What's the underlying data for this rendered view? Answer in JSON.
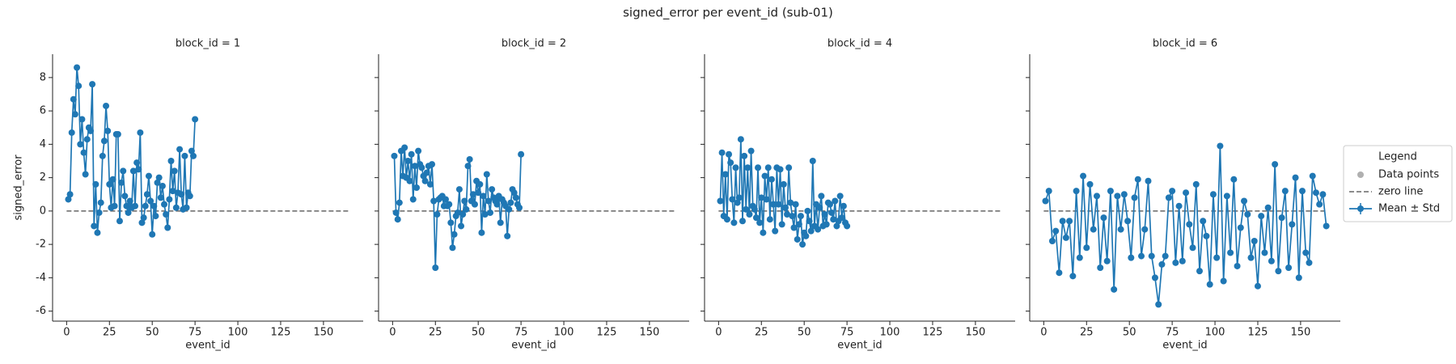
{
  "title": "signed_error per event_id (sub-01)",
  "legend": {
    "title": "Legend",
    "entries": [
      {
        "name": "Data points",
        "color": "#b0b0b0",
        "style": "marker"
      },
      {
        "name": "zero line",
        "color": "#666666",
        "style": "dashed"
      },
      {
        "name": "Mean ± Std",
        "color": "#1f77b4",
        "style": "line-marker"
      }
    ]
  },
  "chart_data": [
    {
      "type": "line",
      "title": "block_id = 1",
      "xlabel": "event_id",
      "ylabel": "signed_error",
      "xlim": [
        -8.2,
        173.2
      ],
      "xticks": [
        0,
        25,
        50,
        75,
        100,
        125,
        150
      ],
      "ylim": [
        -6.6,
        9.4
      ],
      "yticks": [
        -6,
        -4,
        -2,
        0,
        2,
        4,
        6,
        8
      ],
      "zero_line": {
        "y": 0,
        "x": [
          0,
          165
        ]
      },
      "x": [
        1,
        2,
        3,
        4,
        5,
        6,
        7,
        8,
        9,
        10,
        11,
        12,
        13,
        14,
        15,
        16,
        17,
        18,
        19,
        20,
        21,
        22,
        23,
        24,
        25,
        26,
        27,
        28,
        29,
        30,
        31,
        32,
        33,
        34,
        35,
        36,
        37,
        38,
        39,
        40,
        41,
        42,
        43,
        44,
        45,
        46,
        47,
        48,
        49,
        50,
        51,
        52,
        53,
        54,
        55,
        56,
        57,
        58,
        59,
        60,
        61,
        62,
        63,
        64,
        65,
        66,
        67,
        68,
        69,
        70,
        71,
        72,
        73,
        74,
        75
      ],
      "series": [
        {
          "color": "#1f77b4",
          "values": [
            0.7,
            1.0,
            4.7,
            6.7,
            5.8,
            8.6,
            7.5,
            4.0,
            5.5,
            3.5,
            2.2,
            4.3,
            5.0,
            4.8,
            7.6,
            -0.9,
            1.6,
            -1.3,
            -0.1,
            0.5,
            3.3,
            4.2,
            6.3,
            4.8,
            1.6,
            0.2,
            1.9,
            0.3,
            4.6,
            4.6,
            -0.6,
            1.7,
            2.4,
            0.9,
            0.3,
            -0.1,
            0.6,
            0.2,
            2.4,
            0.3,
            2.9,
            2.5,
            4.7,
            -0.7,
            -0.4,
            0.3,
            1.0,
            2.1,
            0.6,
            -1.4,
            0.3,
            -0.3,
            1.7,
            2.0,
            0.8,
            1.5,
            0.4,
            -0.2,
            -1.0,
            0.7,
            3.0,
            1.2,
            2.4,
            0.2,
            1.1,
            3.7,
            1.0,
            0.1,
            3.3,
            0.2,
            1.1,
            0.9,
            3.6,
            3.3,
            5.5
          ]
        }
      ]
    },
    {
      "type": "line",
      "title": "block_id = 2",
      "xlabel": "event_id",
      "xlim": [
        -8.2,
        173.2
      ],
      "xticks": [
        0,
        25,
        50,
        75,
        100,
        125,
        150
      ],
      "zero_line": {
        "y": 0,
        "x": [
          0,
          165
        ]
      },
      "x": [
        1,
        2,
        3,
        4,
        5,
        6,
        7,
        8,
        9,
        10,
        11,
        12,
        13,
        14,
        15,
        16,
        17,
        18,
        19,
        20,
        21,
        22,
        23,
        24,
        25,
        26,
        27,
        28,
        29,
        30,
        31,
        32,
        33,
        34,
        35,
        36,
        37,
        38,
        39,
        40,
        41,
        42,
        43,
        44,
        45,
        46,
        47,
        48,
        49,
        50,
        51,
        52,
        53,
        54,
        55,
        56,
        57,
        58,
        59,
        60,
        61,
        62,
        63,
        64,
        65,
        66,
        67,
        68,
        69,
        70,
        71,
        72,
        73,
        74,
        75
      ],
      "series": [
        {
          "color": "#1f77b4",
          "values": [
            3.3,
            -0.1,
            -0.5,
            0.5,
            3.6,
            2.1,
            3.8,
            2.0,
            3.0,
            1.8,
            3.4,
            0.7,
            2.7,
            1.4,
            3.6,
            2.8,
            2.6,
            2.1,
            1.8,
            2.3,
            2.7,
            1.6,
            2.8,
            0.6,
            -3.4,
            -0.2,
            0.7,
            0.8,
            0.9,
            0.3,
            0.7,
            0.3,
            0.4,
            -0.7,
            -2.2,
            -1.4,
            -0.3,
            -0.1,
            1.3,
            -0.9,
            -0.2,
            0.6,
            0.1,
            2.7,
            3.1,
            0.6,
            1.0,
            0.4,
            1.8,
            1.1,
            1.6,
            -1.3,
            0.9,
            -0.2,
            2.2,
            0.6,
            -0.1,
            1.3,
            0.8,
            0.6,
            0.4,
            0.9,
            -0.7,
            0.7,
            0.5,
            0.3,
            -1.5,
            0.1,
            0.5,
            1.3,
            1.1,
            0.8,
            0.4,
            0.2,
            3.4
          ]
        }
      ]
    },
    {
      "type": "line",
      "title": "block_id = 4",
      "xlabel": "event_id",
      "xlim": [
        -8.2,
        173.2
      ],
      "xticks": [
        0,
        25,
        50,
        75,
        100,
        125,
        150
      ],
      "zero_line": {
        "y": 0,
        "x": [
          0,
          165
        ]
      },
      "x": [
        1,
        2,
        3,
        4,
        5,
        6,
        7,
        8,
        9,
        10,
        11,
        12,
        13,
        14,
        15,
        16,
        17,
        18,
        19,
        20,
        21,
        22,
        23,
        24,
        25,
        26,
        27,
        28,
        29,
        30,
        31,
        32,
        33,
        34,
        35,
        36,
        37,
        38,
        39,
        40,
        41,
        42,
        43,
        44,
        45,
        46,
        47,
        48,
        49,
        50,
        51,
        52,
        53,
        54,
        55,
        56,
        57,
        58,
        59,
        60,
        61,
        62,
        63,
        64,
        65,
        66,
        67,
        68,
        69,
        70,
        71,
        72,
        73,
        74,
        75
      ],
      "series": [
        {
          "color": "#1f77b4",
          "values": [
            0.6,
            3.5,
            -0.3,
            2.2,
            -0.5,
            3.4,
            2.9,
            0.7,
            -0.7,
            2.6,
            0.5,
            0.8,
            4.3,
            -0.6,
            3.3,
            0.1,
            2.6,
            -0.2,
            3.6,
            0.3,
            0.1,
            -0.4,
            2.6,
            -0.7,
            0.8,
            -1.3,
            2.1,
            0.7,
            2.6,
            -0.5,
            1.9,
            0.4,
            -1.2,
            2.6,
            0.4,
            2.5,
            -0.8,
            1.6,
            0.2,
            -0.2,
            2.6,
            0.5,
            -0.3,
            -1.0,
            0.4,
            -1.7,
            -0.8,
            -0.3,
            -2.0,
            -1.3,
            -1.5,
            0.0,
            -0.6,
            -1.2,
            3.0,
            -0.9,
            0.4,
            -1.1,
            0.2,
            0.9,
            -0.9,
            -0.2,
            -0.8,
            0.5,
            0.4,
            -0.1,
            -0.5,
            0.6,
            -0.9,
            -0.6,
            0.9,
            -0.4,
            0.3,
            -0.7,
            -0.9
          ]
        }
      ]
    },
    {
      "type": "line",
      "title": "block_id = 6",
      "xlabel": "event_id",
      "xlim": [
        -8.2,
        173.2
      ],
      "xticks": [
        0,
        25,
        50,
        75,
        100,
        125,
        150
      ],
      "zero_line": {
        "y": 0,
        "x": [
          0,
          165
        ]
      },
      "x": [
        1,
        3,
        5,
        7,
        9,
        11,
        13,
        15,
        17,
        19,
        21,
        23,
        25,
        27,
        29,
        31,
        33,
        35,
        37,
        39,
        41,
        43,
        45,
        47,
        49,
        51,
        53,
        55,
        57,
        59,
        61,
        63,
        65,
        67,
        69,
        71,
        73,
        75,
        77,
        79,
        81,
        83,
        85,
        87,
        89,
        91,
        93,
        95,
        97,
        99,
        101,
        103,
        105,
        107,
        109,
        111,
        113,
        115,
        117,
        119,
        121,
        123,
        125,
        127,
        129,
        131,
        133,
        135,
        137,
        139,
        141,
        143,
        145,
        147,
        149,
        151,
        153,
        155,
        157,
        159,
        161,
        163,
        165
      ],
      "series": [
        {
          "color": "#1f77b4",
          "values": [
            0.6,
            1.2,
            -1.8,
            -1.2,
            -3.7,
            -0.6,
            -1.6,
            -0.6,
            -3.9,
            1.2,
            -2.8,
            2.1,
            -2.2,
            1.6,
            -1.1,
            0.9,
            -3.4,
            -0.4,
            -3.0,
            1.2,
            -4.7,
            0.9,
            -1.1,
            1.0,
            -0.6,
            -2.8,
            0.8,
            1.9,
            -2.7,
            -1.1,
            1.8,
            -2.7,
            -4.0,
            -5.6,
            -3.2,
            -2.7,
            0.8,
            1.2,
            -3.1,
            0.3,
            -3.0,
            1.1,
            -0.8,
            -2.2,
            1.6,
            -3.6,
            -0.6,
            -1.5,
            -4.4,
            1.0,
            -2.8,
            3.9,
            -4.2,
            0.9,
            -2.5,
            1.9,
            -3.3,
            -1.0,
            0.6,
            -0.2,
            -2.8,
            -1.8,
            -4.5,
            -0.3,
            -2.5,
            0.2,
            -3.0,
            2.8,
            -3.6,
            -0.4,
            1.2,
            -3.4,
            -0.8,
            2.0,
            -4.0,
            1.2,
            -2.5,
            -3.1,
            2.1,
            1.1,
            0.4,
            1.0,
            -0.9
          ]
        }
      ]
    }
  ]
}
